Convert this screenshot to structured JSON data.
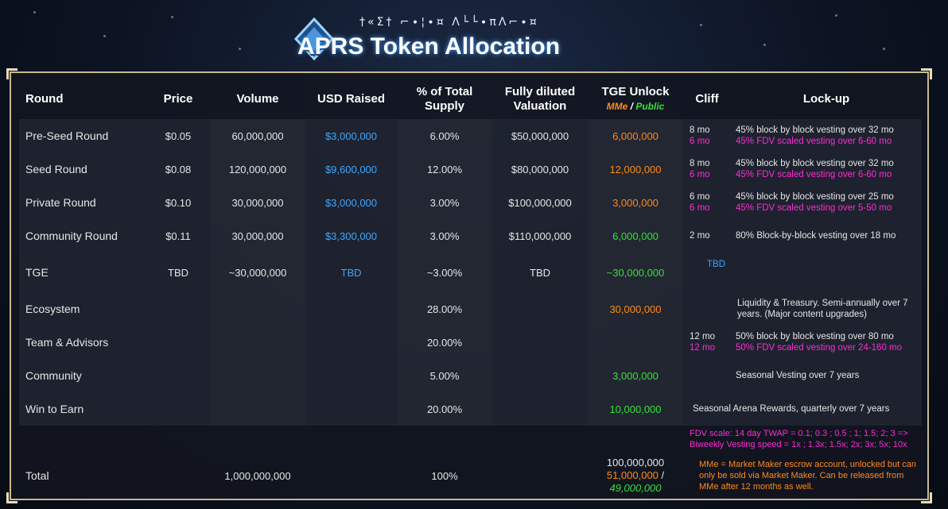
{
  "header": {
    "runes": "†«Σ† ⌐∙¦∙¤ Λ└└∙πΛ⌐∙¤",
    "title": "APRS Token Allocation"
  },
  "table": {
    "columns": {
      "round": "Round",
      "price": "Price",
      "volume": "Volume",
      "usd": "USD Raised",
      "supply_1": "% of Total",
      "supply_2": "Supply",
      "fdv_1": "Fully diluted",
      "fdv_2": "Valuation",
      "tge": "TGE Unlock",
      "tge_mme": "MMe",
      "tge_sep": " / ",
      "tge_public": "Public",
      "cliff": "Cliff",
      "lockup": "Lock-up"
    },
    "rows": [
      {
        "name": "Pre-Seed Round",
        "price": "$0.05",
        "volume": "60,000,000",
        "usd": "$3,000,000",
        "supply": "6.00%",
        "fdv": "$50,000,000",
        "tge": "6,000,000",
        "cliff_a": "8 mo",
        "cliff_b": "6 mo",
        "lock_a": "45% block by block vesting over 32 mo",
        "lock_b": "45% FDV scaled vesting over 6-60 mo"
      },
      {
        "name": "Seed Round",
        "price": "$0.08",
        "volume": "120,000,000",
        "usd": "$9,600,000",
        "supply": "12.00%",
        "fdv": "$80,000,000",
        "tge": "12,000,000",
        "cliff_a": "8 mo",
        "cliff_b": "6 mo",
        "lock_a": "45% block by block vesting over 32 mo",
        "lock_b": "45% FDV scaled vesting over 6-60 mo"
      },
      {
        "name": "Private Round",
        "price": "$0.10",
        "volume": "30,000,000",
        "usd": "$3,000,000",
        "supply": "3.00%",
        "fdv": "$100,000,000",
        "tge": "3,000,000",
        "cliff_a": "6 mo",
        "cliff_b": "6 mo",
        "lock_a": "45% block by block vesting over 25 mo",
        "lock_b": "45% FDV scaled vesting over 5-50 mo"
      },
      {
        "name": "Community Round",
        "price": "$0.11",
        "volume": "30,000,000",
        "usd": "$3,300,000",
        "supply": "3.00%",
        "fdv": "$110,000,000",
        "tge": "6,000,000",
        "cliff_a": "2 mo",
        "lock_a": "80% Block-by-block vesting over 18 mo"
      },
      {
        "name": "TGE",
        "price": "TBD",
        "volume": "~30,000,000",
        "usd": "TBD",
        "supply": "~3.00%",
        "fdv": "TBD",
        "tge": "~30,000,000",
        "cliff_a": "TBD"
      },
      {
        "name": "Ecosystem",
        "supply": "28.00%",
        "tge": "30,000,000",
        "lock_a": "Liquidity & Treasury. Semi-annually over 7 years. (Major content upgrades)"
      },
      {
        "name": "Team & Advisors",
        "supply": "20.00%",
        "cliff_a": "12 mo",
        "cliff_b": "12 mo",
        "lock_a": "50% block by block vesting over 80 mo",
        "lock_b": "50% FDV scaled vesting over 24-160 mo"
      },
      {
        "name": "Community",
        "supply": "5.00%",
        "tge": "3,000,000",
        "lock_a": "Seasonal Vesting over 7 years"
      },
      {
        "name": "Win to Earn",
        "supply": "20.00%",
        "tge": "10,000,000",
        "lock_a": "Seasonal Arena Rewards, quarterly over 7 years"
      }
    ],
    "fdv_note_1": "FDV scale: 14 day TWAP = 0.1; 0.3 ;  0.5 ;   1; 1.5;  2;  3 =>",
    "fdv_note_2": "Biweekly Vesting speed =   1x ; 1.3x; 1.5x; 2x; 3x; 5x; 10x",
    "total": {
      "name": "Total",
      "volume": "1,000,000,000",
      "supply": "100%",
      "tge_total": "100,000,000",
      "tge_mme": "51,000,000",
      "tge_sep": " / ",
      "tge_public": "49,000,000",
      "mme_note": "MMe = Market Maker escrow account, unlocked but can only be sold via Market Maker. Can be released from MMe after 12 months as well."
    }
  }
}
